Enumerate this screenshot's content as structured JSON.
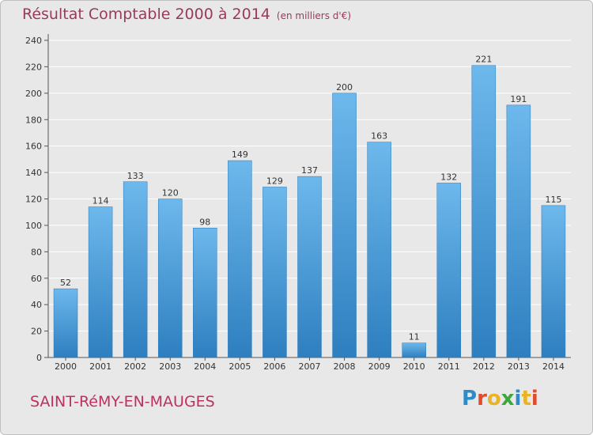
{
  "header": {
    "title": "Résultat Comptable 2000 à 2014",
    "subtitle": "(en milliers d'€)"
  },
  "footer": {
    "commune": "SAINT-RéMY-EN-MAUGES",
    "logo_letters": [
      "P",
      "r",
      "o",
      "x",
      "i",
      "t",
      "i"
    ],
    "logo_colors": [
      "#2e8bc9",
      "#e24a2b",
      "#e9b323",
      "#3aa83a",
      "#2e8bc9",
      "#e9b323",
      "#e24a2b"
    ]
  },
  "colors": {
    "bar_light": "#6db8ec",
    "bar_dark": "#2e7fc0",
    "title": "#9a3a5a",
    "commune": "#c0305f",
    "grid": "#ffffff"
  },
  "chart_data": {
    "type": "bar",
    "categories": [
      "2000",
      "2001",
      "2002",
      "2003",
      "2004",
      "2005",
      "2006",
      "2007",
      "2008",
      "2009",
      "2010",
      "2011",
      "2012",
      "2013",
      "2014"
    ],
    "values": [
      52,
      114,
      133,
      120,
      98,
      149,
      129,
      137,
      200,
      163,
      11,
      132,
      221,
      191,
      115
    ],
    "ylim": [
      0,
      240
    ],
    "yticks": [
      0,
      20,
      40,
      60,
      80,
      100,
      120,
      140,
      160,
      180,
      200,
      220,
      240
    ],
    "grid": true,
    "legend": "none"
  }
}
